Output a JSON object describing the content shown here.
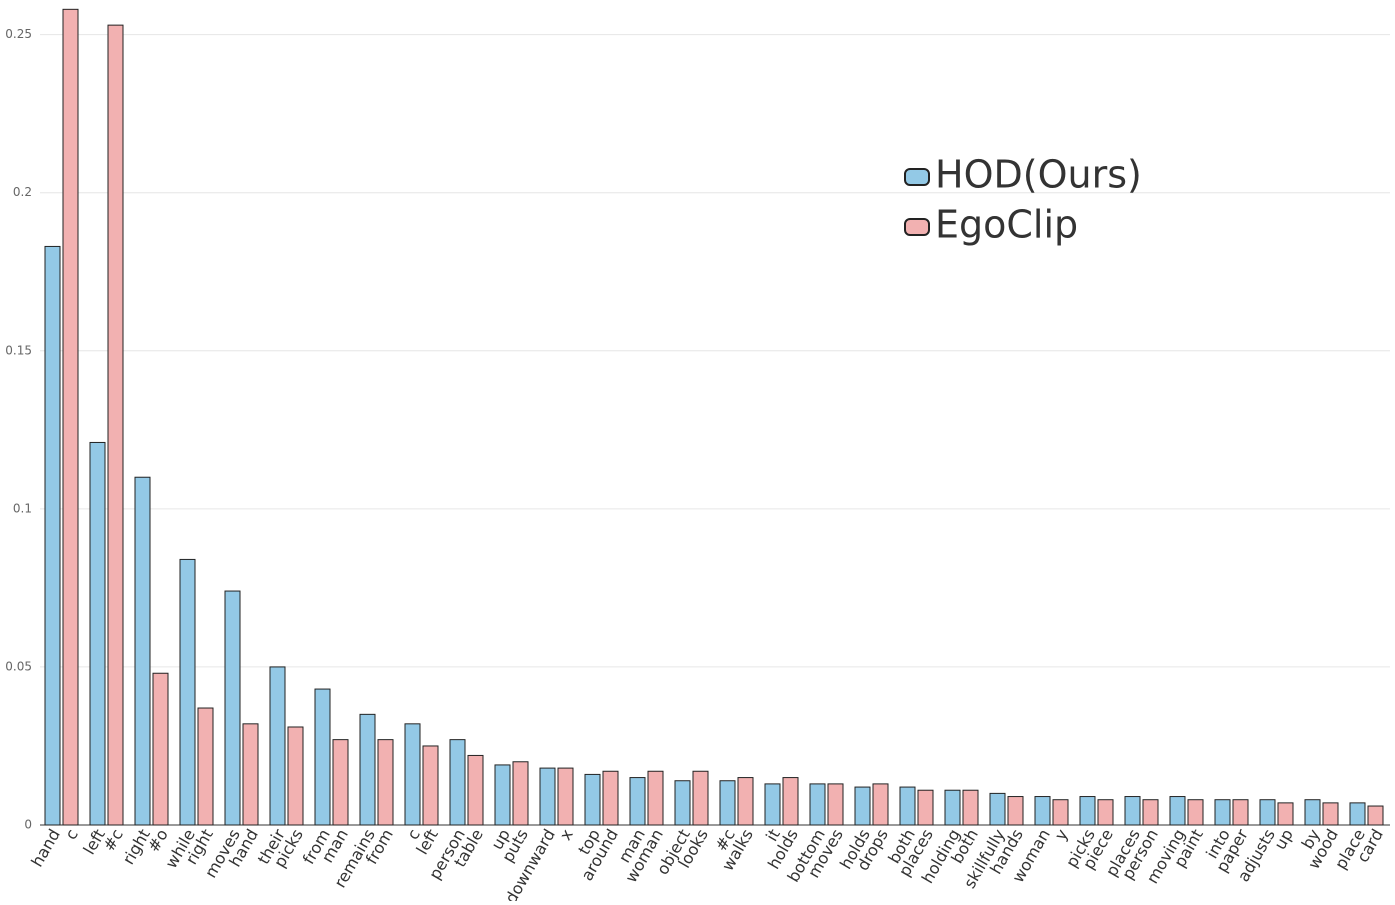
{
  "chart_data": {
    "type": "bar",
    "ylim": [
      0,
      0.26
    ],
    "yticks": [
      0,
      0.05,
      0.1,
      0.15,
      0.2,
      0.25
    ],
    "grid": true,
    "legend": "upper right",
    "series": [
      {
        "name": "HOD(Ours)",
        "color": "#93c9e6",
        "labels": [
          "hand",
          "left",
          "right",
          "while",
          "moves",
          "their",
          "from",
          "remains",
          "c",
          "person",
          "up",
          "downward",
          "top",
          "man",
          "object",
          "#c",
          "it",
          "bottom",
          "holds",
          "both",
          "holding",
          "skillfully",
          "woman",
          "picks",
          "places",
          "moving",
          "into",
          "adjusts",
          "by",
          "place"
        ],
        "values": [
          0.183,
          0.121,
          0.11,
          0.084,
          0.074,
          0.05,
          0.043,
          0.035,
          0.032,
          0.027,
          0.019,
          0.018,
          0.016,
          0.015,
          0.014,
          0.014,
          0.013,
          0.013,
          0.012,
          0.012,
          0.011,
          0.01,
          0.009,
          0.009,
          0.009,
          0.009,
          0.008,
          0.008,
          0.008,
          0.007
        ]
      },
      {
        "name": "EgoClip",
        "color": "#f2b1b1",
        "labels": [
          "c",
          "#c",
          "#o",
          "right",
          "hand",
          "picks",
          "man",
          "from",
          "left",
          "table",
          "puts",
          "x",
          "around",
          "woman",
          "looks",
          "walks",
          "holds",
          "moves",
          "drops",
          "places",
          "both",
          "hands",
          "y",
          "piece",
          "person",
          "paint",
          "paper",
          "up",
          "wood",
          "card"
        ],
        "values": [
          0.258,
          0.253,
          0.048,
          0.037,
          0.032,
          0.031,
          0.027,
          0.027,
          0.025,
          0.022,
          0.02,
          0.018,
          0.017,
          0.017,
          0.017,
          0.015,
          0.015,
          0.013,
          0.013,
          0.011,
          0.011,
          0.009,
          0.008,
          0.008,
          0.008,
          0.008,
          0.008,
          0.007,
          0.007,
          0.006
        ]
      }
    ]
  }
}
